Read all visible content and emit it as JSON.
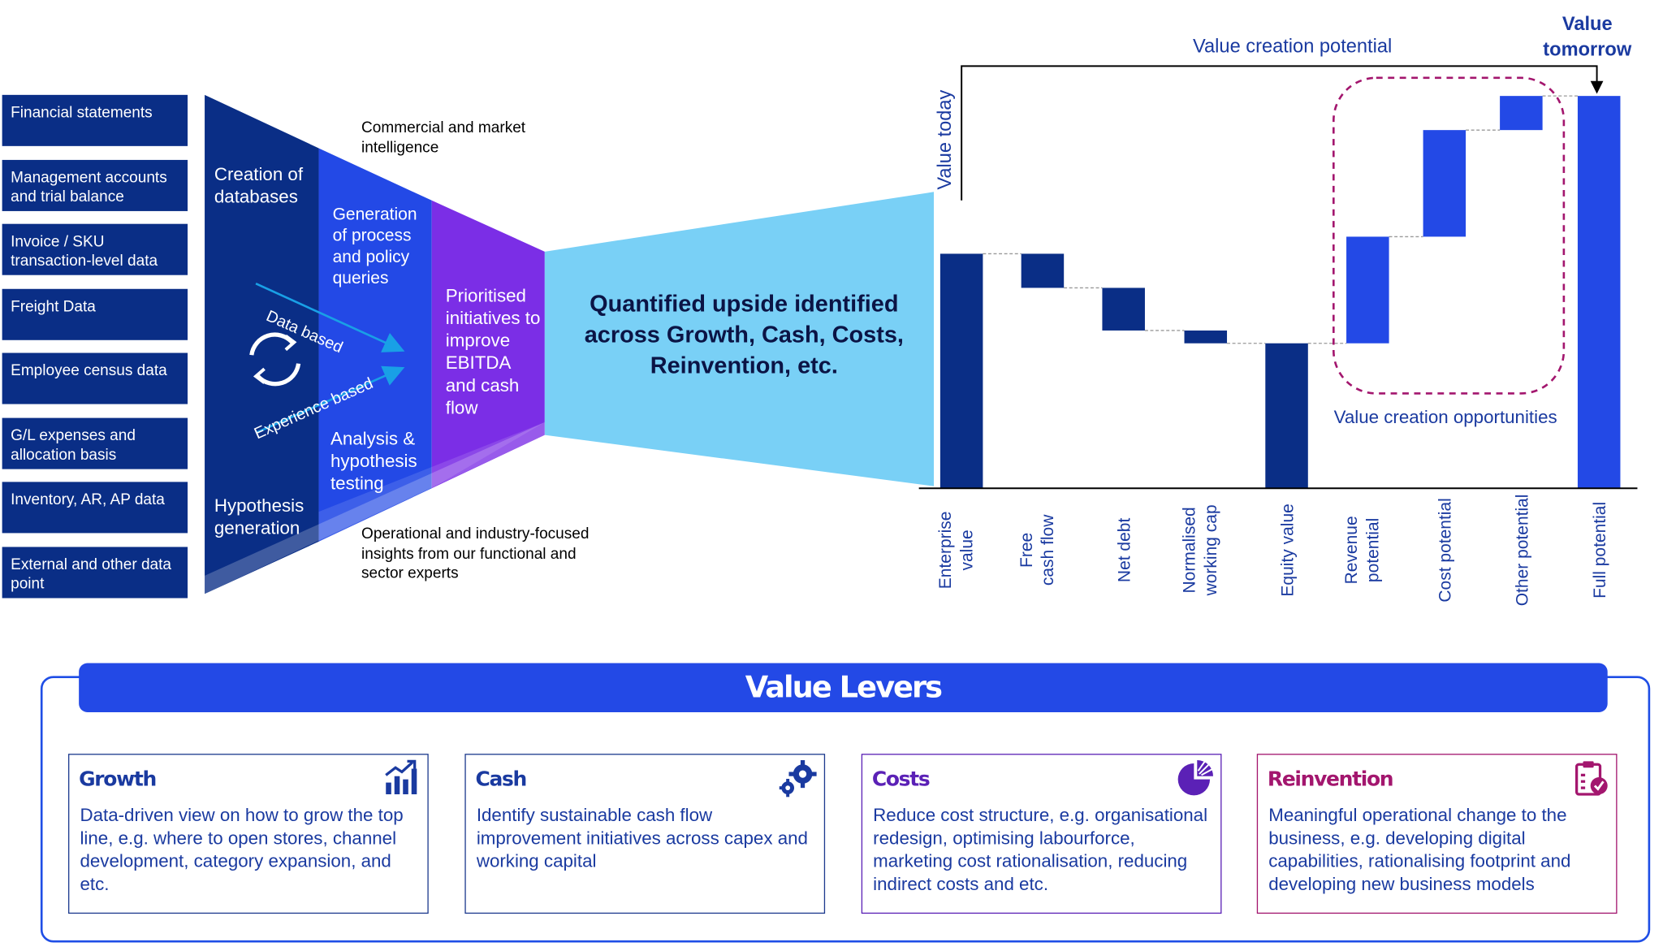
{
  "data_sources": [
    "Financial statements",
    "Management accounts and trial balance",
    "Invoice / SKU transaction-level data",
    "Freight Data",
    "Employee census data",
    "G/L expenses and allocation basis",
    "Inventory, AR, AP data",
    "External and other data point"
  ],
  "funnel": {
    "creation": "Creation of databases",
    "hypothesis": "Hypothesis generation",
    "generation_queries": "Generation of process and policy queries",
    "analysis": "Analysis & hypothesis testing",
    "prioritised": "Prioritised initiatives to improve EBITDA and cash flow",
    "commercial": "Commercial and market intelligence",
    "operational": "Operational and industry-focused insights from our functional and sector experts",
    "data_based": "Data based",
    "experience_based": "Experience based",
    "quantified": "Quantified upside identified across Growth, Cash, Costs, Reinvention, etc."
  },
  "chart_data": {
    "type": "bar",
    "subtype": "waterfall",
    "categories": [
      "Enterprise value",
      "Free cash flow",
      "Net debt",
      "Normalised working cap",
      "Equity value",
      "Revenue potential",
      "Cost potential",
      "Other potential",
      "Full potential"
    ],
    "bars": [
      {
        "label": "Enterprise value",
        "start": 0,
        "end": 5.5,
        "kind": "total"
      },
      {
        "label": "Free cash flow",
        "start": 5.5,
        "end": 4.7,
        "kind": "decrease"
      },
      {
        "label": "Net debt",
        "start": 4.7,
        "end": 3.7,
        "kind": "decrease"
      },
      {
        "label": "Normalised working cap",
        "start": 3.7,
        "end": 3.4,
        "kind": "decrease"
      },
      {
        "label": "Equity value",
        "start": 0,
        "end": 3.4,
        "kind": "total"
      },
      {
        "label": "Revenue potential",
        "start": 3.4,
        "end": 5.9,
        "kind": "increase"
      },
      {
        "label": "Cost potential",
        "start": 5.9,
        "end": 8.4,
        "kind": "increase"
      },
      {
        "label": "Other potential",
        "start": 8.4,
        "end": 9.2,
        "kind": "increase"
      },
      {
        "label": "Full potential",
        "start": 0,
        "end": 9.2,
        "kind": "total-highlight"
      }
    ],
    "ylim": [
      0,
      10
    ],
    "annotations": {
      "value_today": "Value today",
      "value_creation_potential": "Value creation potential",
      "value_tomorrow": "Value tomorrow",
      "value_creation_opportunities": "Value creation opportunities"
    },
    "colors": {
      "dark": "#0a2e86",
      "bright": "#2349e6",
      "highlight_border": "#a3166e"
    }
  },
  "levers": {
    "title": "Value Levers",
    "items": [
      {
        "title": "Growth",
        "icon": "bar-chart-icon",
        "color": "#1a3aa0",
        "desc": "Data-driven view on how to grow the top line, e.g. where to open stores, channel development, category expansion, and etc."
      },
      {
        "title": "Cash",
        "icon": "gears-icon",
        "color": "#1a3aa0",
        "desc": "Identify sustainable cash flow improvement initiatives across capex and working capital"
      },
      {
        "title": "Costs",
        "icon": "pie-chart-icon",
        "color": "#5b21b6",
        "desc": "Reduce cost structure, e.g. organisational redesign, optimising labourforce, marketing cost rationalisation, reducing indirect costs and etc."
      },
      {
        "title": "Reinvention",
        "icon": "clipboard-check-icon",
        "color": "#a3166e",
        "desc": "Meaningful operational change to the business, e.g. developing digital capabilities, rationalising footprint and developing new business models"
      }
    ]
  }
}
